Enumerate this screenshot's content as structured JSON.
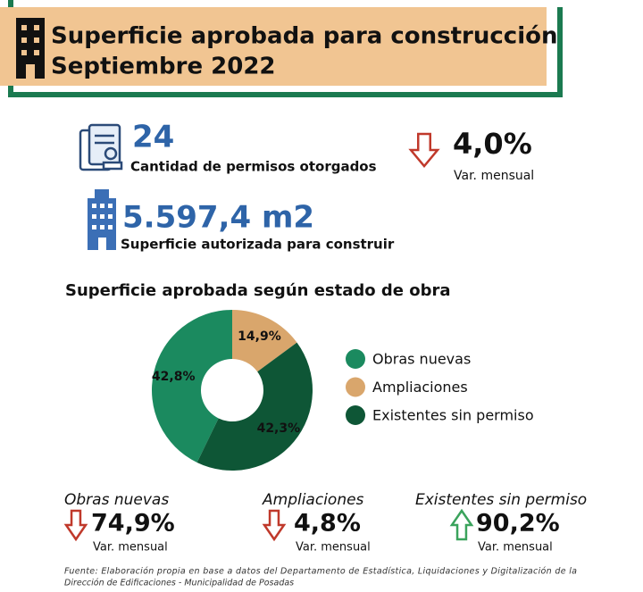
{
  "header": {
    "title": "Superficie aprobada para construcción",
    "subtitle": "Septiembre 2022"
  },
  "permits": {
    "value": "24",
    "label": "Cantidad de permisos otorgados",
    "change": "4,0%",
    "change_label": "Var. mensual",
    "direction": "down"
  },
  "area": {
    "value": "5.597,4 m2",
    "label": "Superficie autorizada para construir"
  },
  "chart_data": {
    "type": "pie",
    "donut": true,
    "title": "Superficie aprobada según estado de obra",
    "categories": [
      "Obras nuevas",
      "Ampliaciones",
      "Existentes sin permiso"
    ],
    "values": [
      42.8,
      14.9,
      42.3
    ],
    "value_labels": [
      "42,8%",
      "14,9%",
      "42,3%"
    ],
    "colors": [
      "#1b8a5f",
      "#d9a66c",
      "#0e5636"
    ]
  },
  "variations": [
    {
      "name": "Obras nuevas",
      "value": "74,9%",
      "label": "Var. mensual",
      "direction": "down"
    },
    {
      "name": "Ampliaciones",
      "value": "4,8%",
      "label": "Var. mensual",
      "direction": "down"
    },
    {
      "name": "Existentes sin permiso",
      "value": "90,2%",
      "label": "Var. mensual",
      "direction": "up"
    }
  ],
  "source": [
    "Fuente: Elaboración propia en base a datos del Departamento de Estadística, Liquidaciones y Digitalización de la",
    "Dirección de Edificaciones - Municipalidad de Posadas"
  ]
}
